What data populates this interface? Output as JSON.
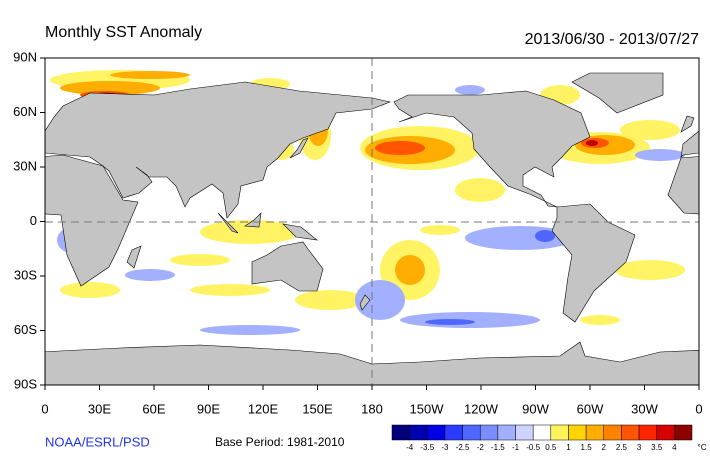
{
  "header": {
    "title": "Monthly SST Anomaly",
    "date_range": "2013/06/30 - 2013/07/27"
  },
  "axes": {
    "lat_labels": [
      "90N",
      "60N",
      "30N",
      "0",
      "30S",
      "60S",
      "90S"
    ],
    "lon_labels": [
      "0",
      "30E",
      "60E",
      "90E",
      "120E",
      "150E",
      "180",
      "150W",
      "120W",
      "90W",
      "60W",
      "30W",
      "0"
    ]
  },
  "footer": {
    "credit": "NOAA/ESRL/PSD",
    "base_period": "Base Period: 1981-2010"
  },
  "colorbar": {
    "labels": [
      -4,
      -3.5,
      -3,
      -2.5,
      -2,
      -1.5,
      -1,
      -0.5,
      0.5,
      1,
      1.5,
      2,
      2.5,
      3,
      3.5,
      4
    ],
    "unit": "°C",
    "colors": [
      "#00007a",
      "#0000b0",
      "#0000e6",
      "#2a3cff",
      "#4f66ff",
      "#7a8cff",
      "#a3b0ff",
      "#cdd3ff",
      "#ffffff",
      "#fff35c",
      "#ffd400",
      "#ffad00",
      "#ff8200",
      "#ff5400",
      "#ff2400",
      "#d60000",
      "#8c0000"
    ]
  }
}
